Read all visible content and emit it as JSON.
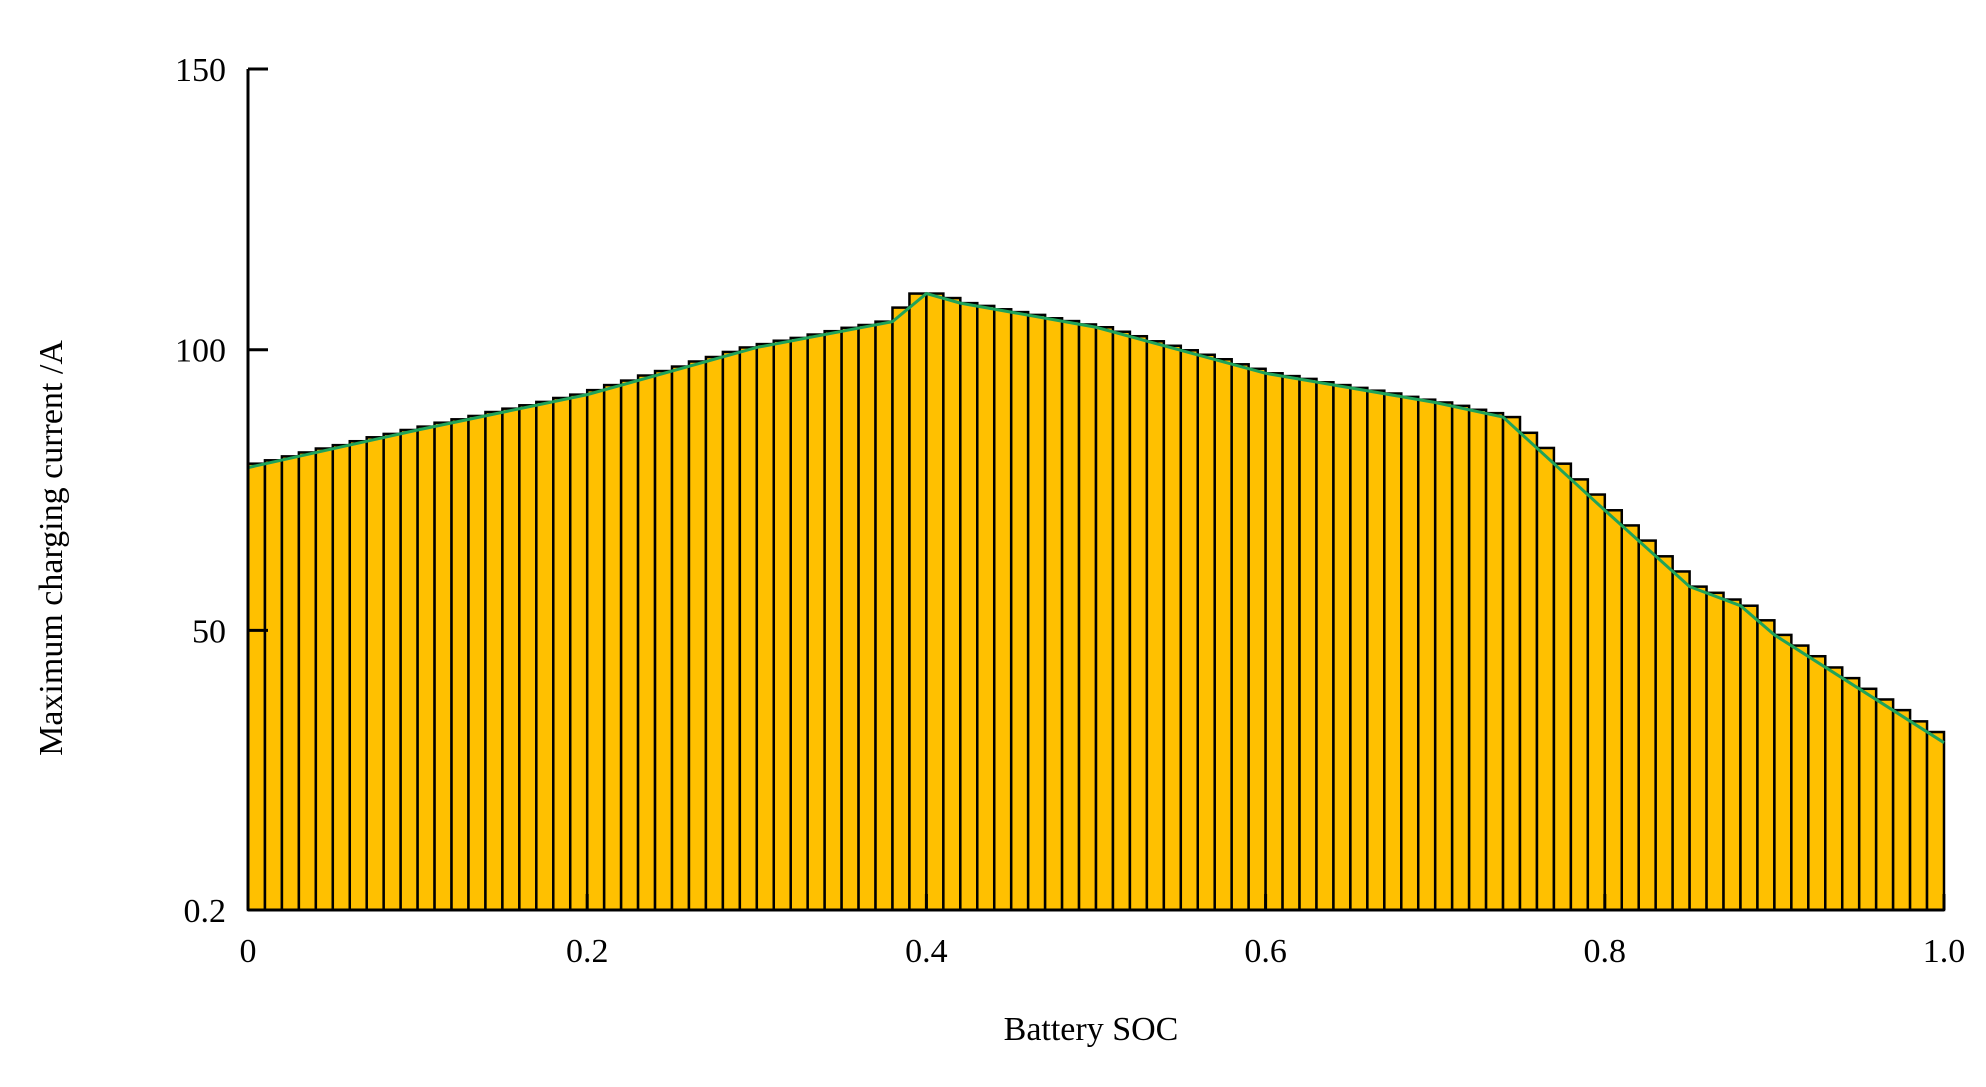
{
  "chart_data": {
    "type": "histogram",
    "xlabel": "Battery SOC",
    "ylabel": "Maximum charging current /A",
    "bins": [
      0,
      0.01,
      0.02,
      0.03,
      0.04,
      0.05,
      0.06,
      0.07,
      0.08,
      0.09,
      0.1,
      0.11,
      0.12,
      0.13,
      0.14,
      0.15,
      0.16,
      0.17,
      0.18,
      0.19,
      0.2,
      0.21,
      0.22,
      0.23,
      0.24,
      0.25,
      0.26,
      0.27,
      0.28,
      0.29,
      0.3,
      0.31,
      0.32,
      0.33,
      0.34,
      0.35,
      0.36,
      0.37,
      0.38,
      0.39,
      0.4,
      0.41,
      0.42,
      0.43,
      0.44,
      0.45,
      0.46,
      0.47,
      0.48,
      0.49,
      0.5,
      0.51,
      0.52,
      0.53,
      0.54,
      0.55,
      0.56,
      0.57,
      0.58,
      0.59,
      0.6,
      0.61,
      0.62,
      0.63,
      0.64,
      0.65,
      0.66,
      0.67,
      0.68,
      0.69,
      0.7,
      0.71,
      0.72,
      0.73,
      0.74,
      0.75,
      0.76,
      0.77,
      0.78,
      0.79,
      0.8,
      0.81,
      0.82,
      0.83,
      0.84,
      0.85,
      0.86,
      0.87,
      0.88,
      0.89,
      0.9,
      0.91,
      0.92,
      0.93,
      0.94,
      0.95,
      0.96,
      0.97,
      0.98,
      0.99,
      1
    ],
    "values": [
      79.7,
      80.3,
      81.0,
      81.7,
      82.4,
      83.0,
      83.7,
      84.4,
      85.0,
      85.7,
      86.3,
      87.0,
      87.6,
      88.2,
      88.9,
      89.5,
      90.1,
      90.7,
      91.4,
      92.0,
      92.8,
      93.7,
      94.5,
      95.4,
      96.2,
      97.0,
      97.9,
      98.7,
      99.6,
      100.4,
      101.0,
      101.6,
      102.1,
      102.7,
      103.3,
      103.9,
      104.4,
      105.0,
      107.5,
      110.0,
      110.0,
      109.2,
      108.3,
      107.8,
      107.2,
      106.7,
      106.2,
      105.6,
      105.1,
      104.5,
      104.0,
      103.2,
      102.4,
      101.5,
      100.7,
      99.9,
      99.1,
      98.3,
      97.4,
      96.6,
      95.8,
      95.3,
      94.8,
      94.2,
      93.7,
      93.2,
      92.7,
      92.2,
      91.6,
      91.1,
      90.6,
      90.0,
      89.3,
      88.7,
      88.0,
      85.2,
      82.5,
      79.7,
      76.9,
      74.2,
      71.4,
      68.7,
      66.0,
      63.2,
      60.5,
      57.8,
      56.7,
      55.5,
      54.4,
      51.8,
      49.2,
      47.3,
      45.4,
      43.4,
      41.5,
      39.6,
      37.7,
      35.8,
      33.8,
      31.9
    ],
    "color": "#ffc000",
    "line": {
      "color": "#1fa35a",
      "x": [
        0,
        0.1,
        0.2,
        0.3,
        0.38,
        0.4,
        0.42,
        0.5,
        0.6,
        0.7,
        0.74,
        0.8,
        0.85,
        0.88,
        0.9,
        1
      ],
      "values": [
        79,
        85.7,
        92,
        100.4,
        105,
        110,
        108.3,
        104,
        95.8,
        90.6,
        88,
        71.4,
        57.8,
        54.4,
        49.2,
        30
      ]
    },
    "xlim": [
      0,
      1
    ],
    "ylim": [
      0.2,
      150
    ],
    "xticks": [
      0,
      0.2,
      0.4,
      0.6,
      0.8,
      {
        "value": 1,
        "label": "1.0"
      }
    ],
    "yticks": [
      0.2,
      50,
      100,
      150
    ]
  }
}
